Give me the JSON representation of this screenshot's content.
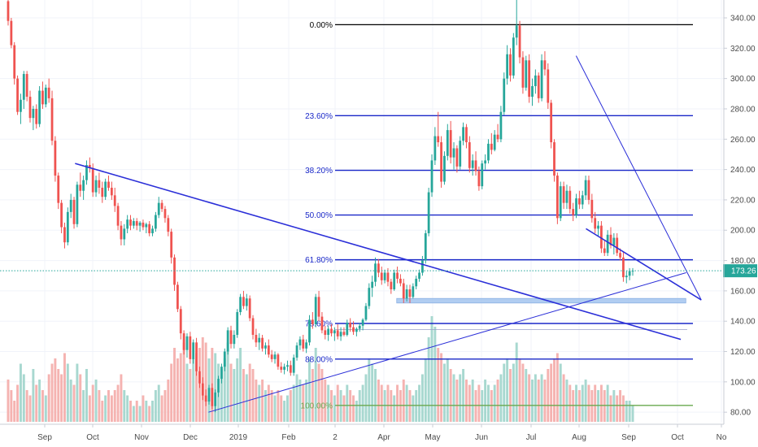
{
  "chart_data": {
    "type": "candlestick",
    "last_price": "173.26",
    "last_price_value": 173.26,
    "y_axis": {
      "ylim": [
        62,
        352
      ],
      "ticks": [
        "340.00",
        "320.00",
        "300.00",
        "280.00",
        "260.00",
        "240.00",
        "220.00",
        "200.00",
        "180.00",
        "160.00",
        "140.00",
        "120.00",
        "100.00",
        "80.00"
      ],
      "tick_values": [
        340,
        320,
        300,
        280,
        260,
        240,
        220,
        200,
        180,
        160,
        140,
        120,
        100,
        80
      ]
    },
    "x_axis": {
      "tick_labels": [
        "Sep",
        "Oct",
        "Nov",
        "Dec",
        "2019",
        "Feb",
        "2",
        "Apr",
        "May",
        "Jun",
        "Jul",
        "Aug",
        "Sep",
        "Oct",
        "No"
      ]
    },
    "fibonacci": [
      {
        "label": "0.00%",
        "value": 335.5,
        "color": "#000000"
      },
      {
        "label": "23.60%",
        "value": 275.5,
        "color": "#1a28c8"
      },
      {
        "label": "38.20%",
        "value": 239.5,
        "color": "#1a28c8"
      },
      {
        "label": "50.00%",
        "value": 210.0,
        "color": "#1a28c8"
      },
      {
        "label": "61.80%",
        "value": 180.5,
        "color": "#1a28c8"
      },
      {
        "label": "78.60%",
        "value": 138.5,
        "color": "#1a28c8"
      },
      {
        "label": "88.00%",
        "value": 115.0,
        "color": "#1a28c8"
      },
      {
        "label": "100.00%",
        "value": 84.5,
        "color": "#6aa84f"
      }
    ],
    "colors": {
      "up": "#26a69a",
      "down": "#ef5350",
      "up_volume": "#a8d8d0",
      "down_volume": "#f5b3b1",
      "trendline": "#2b2fd8",
      "support_zone": "#a9c8f0",
      "price_line": "#26a69a",
      "grid": "#f0f3fa"
    },
    "trendlines": [
      {
        "name": "descending-resistance",
        "from": [
          0.113,
          244
        ],
        "to": [
          0.925,
          128
        ]
      },
      {
        "name": "rising-support",
        "from": [
          0.289,
          80
        ],
        "to": [
          0.932,
          172
        ]
      },
      {
        "name": "wedge-upper",
        "from": [
          0.774,
          315
        ],
        "to": [
          0.952,
          154
        ]
      },
      {
        "name": "wedge-lower",
        "from": [
          0.787,
          201
        ],
        "to": [
          0.952,
          154
        ]
      }
    ],
    "support_zone": {
      "from": 0.577,
      "to": 0.952,
      "low": 152,
      "high": 155
    },
    "candles": [
      [
        351,
        352,
        335,
        338
      ],
      [
        338,
        340,
        320,
        322
      ],
      [
        322,
        324,
        296,
        300
      ],
      [
        300,
        302,
        276,
        278
      ],
      [
        278,
        290,
        270,
        286
      ],
      [
        286,
        305,
        280,
        303
      ],
      [
        303,
        305,
        285,
        288
      ],
      [
        288,
        292,
        271,
        274
      ],
      [
        274,
        282,
        266,
        280
      ],
      [
        280,
        283,
        267,
        270
      ],
      [
        270,
        295,
        268,
        292
      ],
      [
        292,
        298,
        280,
        283
      ],
      [
        283,
        296,
        281,
        294
      ],
      [
        294,
        300,
        284,
        287
      ],
      [
        287,
        292,
        256,
        259
      ],
      [
        259,
        262,
        232,
        236
      ],
      [
        236,
        238,
        214,
        218
      ],
      [
        218,
        220,
        198,
        202
      ],
      [
        202,
        205,
        188,
        192
      ],
      [
        192,
        215,
        190,
        212
      ],
      [
        212,
        224,
        208,
        220
      ],
      [
        220,
        222,
        201,
        204
      ],
      [
        204,
        232,
        202,
        230
      ],
      [
        230,
        238,
        222,
        226
      ],
      [
        226,
        236,
        220,
        233
      ],
      [
        233,
        246,
        230,
        243
      ],
      [
        243,
        248,
        238,
        241
      ],
      [
        241,
        244,
        222,
        225
      ],
      [
        225,
        236,
        222,
        233
      ],
      [
        233,
        238,
        224,
        228
      ],
      [
        228,
        232,
        218,
        222
      ],
      [
        222,
        234,
        220,
        232
      ],
      [
        232,
        236,
        226,
        228
      ],
      [
        228,
        232,
        220,
        223
      ],
      [
        223,
        228,
        212,
        216
      ],
      [
        216,
        218,
        200,
        203
      ],
      [
        203,
        206,
        190,
        194
      ],
      [
        194,
        204,
        190,
        201
      ],
      [
        201,
        210,
        198,
        207
      ],
      [
        207,
        210,
        200,
        203
      ],
      [
        203,
        208,
        201,
        206
      ],
      [
        206,
        208,
        200,
        203
      ],
      [
        203,
        206,
        199,
        205
      ],
      [
        205,
        207,
        200,
        202
      ],
      [
        202,
        205,
        198,
        204
      ],
      [
        204,
        206,
        196,
        198
      ],
      [
        198,
        203,
        196,
        201
      ],
      [
        201,
        212,
        199,
        210
      ],
      [
        210,
        222,
        208,
        218
      ],
      [
        218,
        220,
        212,
        214
      ],
      [
        214,
        216,
        205,
        208
      ],
      [
        208,
        210,
        196,
        199
      ],
      [
        199,
        201,
        178,
        182
      ],
      [
        182,
        184,
        160,
        164
      ],
      [
        164,
        166,
        146,
        148
      ],
      [
        148,
        150,
        128,
        132
      ],
      [
        132,
        134,
        118,
        121
      ],
      [
        121,
        132,
        116,
        130
      ],
      [
        130,
        133,
        112,
        115
      ],
      [
        115,
        128,
        112,
        126
      ],
      [
        126,
        129,
        104,
        107
      ],
      [
        107,
        110,
        96,
        99
      ],
      [
        99,
        103,
        88,
        91
      ],
      [
        91,
        95,
        84,
        87
      ],
      [
        87,
        98,
        85,
        96
      ],
      [
        96,
        99,
        82,
        84
      ],
      [
        84,
        95,
        80,
        93
      ],
      [
        93,
        104,
        90,
        102
      ],
      [
        102,
        112,
        99,
        110
      ],
      [
        110,
        122,
        107,
        120
      ],
      [
        120,
        136,
        118,
        134
      ],
      [
        134,
        137,
        122,
        125
      ],
      [
        125,
        134,
        122,
        131
      ],
      [
        131,
        148,
        129,
        146
      ],
      [
        146,
        158,
        144,
        156
      ],
      [
        156,
        160,
        148,
        150
      ],
      [
        150,
        158,
        147,
        155
      ],
      [
        155,
        157,
        140,
        142
      ],
      [
        142,
        144,
        128,
        131
      ],
      [
        131,
        135,
        123,
        126
      ],
      [
        126,
        132,
        121,
        129
      ],
      [
        129,
        131,
        120,
        122
      ],
      [
        122,
        126,
        118,
        124
      ],
      [
        124,
        128,
        116,
        118
      ],
      [
        118,
        121,
        113,
        115
      ],
      [
        115,
        120,
        112,
        118
      ],
      [
        118,
        119,
        108,
        110
      ],
      [
        110,
        113,
        106,
        108
      ],
      [
        108,
        112,
        105,
        110
      ],
      [
        110,
        114,
        107,
        111
      ],
      [
        111,
        114,
        104,
        106
      ],
      [
        106,
        118,
        104,
        116
      ],
      [
        116,
        126,
        114,
        124
      ],
      [
        124,
        130,
        121,
        128
      ],
      [
        128,
        131,
        120,
        122
      ],
      [
        122,
        128,
        119,
        126
      ],
      [
        126,
        144,
        124,
        141
      ],
      [
        141,
        146,
        135,
        138
      ],
      [
        138,
        158,
        136,
        156
      ],
      [
        156,
        160,
        140,
        143
      ],
      [
        143,
        146,
        132,
        134
      ],
      [
        134,
        137,
        128,
        131
      ],
      [
        131,
        137,
        127,
        135
      ],
      [
        135,
        138,
        130,
        132
      ],
      [
        132,
        136,
        127,
        134
      ],
      [
        134,
        138,
        128,
        130
      ],
      [
        130,
        136,
        127,
        133
      ],
      [
        133,
        136,
        130,
        131
      ],
      [
        131,
        141,
        130,
        139
      ],
      [
        139,
        142,
        133,
        136
      ],
      [
        136,
        140,
        131,
        133
      ],
      [
        133,
        136,
        130,
        135
      ],
      [
        135,
        139,
        133,
        137
      ],
      [
        137,
        142,
        134,
        141
      ],
      [
        141,
        152,
        140,
        150
      ],
      [
        150,
        165,
        148,
        162
      ],
      [
        162,
        170,
        156,
        166
      ],
      [
        166,
        182,
        163,
        178
      ],
      [
        178,
        181,
        169,
        172
      ],
      [
        172,
        176,
        164,
        167
      ],
      [
        167,
        174,
        165,
        172
      ],
      [
        172,
        175,
        163,
        166
      ],
      [
        166,
        168,
        158,
        161
      ],
      [
        161,
        174,
        160,
        172
      ],
      [
        172,
        176,
        165,
        168
      ],
      [
        168,
        171,
        163,
        165
      ],
      [
        165,
        168,
        152,
        155
      ],
      [
        155,
        164,
        153,
        161
      ],
      [
        161,
        164,
        152,
        156
      ],
      [
        156,
        165,
        155,
        163
      ],
      [
        163,
        170,
        161,
        168
      ],
      [
        168,
        174,
        166,
        172
      ],
      [
        172,
        183,
        170,
        180
      ],
      [
        180,
        200,
        178,
        198
      ],
      [
        198,
        228,
        196,
        225
      ],
      [
        225,
        250,
        222,
        246
      ],
      [
        246,
        268,
        243,
        262
      ],
      [
        262,
        278,
        255,
        258
      ],
      [
        258,
        262,
        228,
        232
      ],
      [
        232,
        252,
        230,
        249
      ],
      [
        249,
        270,
        246,
        266
      ],
      [
        266,
        272,
        244,
        248
      ],
      [
        248,
        258,
        240,
        254
      ],
      [
        254,
        256,
        238,
        242
      ],
      [
        242,
        262,
        240,
        259
      ],
      [
        259,
        271,
        256,
        268
      ],
      [
        268,
        270,
        254,
        258
      ],
      [
        258,
        262,
        238,
        241
      ],
      [
        241,
        250,
        236,
        246
      ],
      [
        246,
        252,
        236,
        239
      ],
      [
        239,
        242,
        226,
        229
      ],
      [
        229,
        246,
        227,
        244
      ],
      [
        244,
        250,
        240,
        246
      ],
      [
        246,
        260,
        244,
        257
      ],
      [
        257,
        264,
        250,
        253
      ],
      [
        253,
        266,
        252,
        263
      ],
      [
        263,
        270,
        258,
        260
      ],
      [
        260,
        282,
        258,
        278
      ],
      [
        278,
        304,
        276,
        300
      ],
      [
        300,
        322,
        296,
        316
      ],
      [
        316,
        320,
        298,
        302
      ],
      [
        302,
        330,
        300,
        327
      ],
      [
        327,
        352,
        322,
        335
      ],
      [
        335,
        338,
        310,
        314
      ],
      [
        314,
        318,
        290,
        294
      ],
      [
        294,
        315,
        292,
        312
      ],
      [
        312,
        316,
        284,
        288
      ],
      [
        288,
        300,
        282,
        295
      ],
      [
        295,
        306,
        290,
        302
      ],
      [
        302,
        304,
        284,
        287
      ],
      [
        287,
        316,
        285,
        312
      ],
      [
        312,
        318,
        302,
        306
      ],
      [
        306,
        310,
        280,
        284
      ],
      [
        284,
        286,
        254,
        258
      ],
      [
        258,
        260,
        232,
        236
      ],
      [
        236,
        238,
        204,
        208
      ],
      [
        208,
        232,
        206,
        229
      ],
      [
        229,
        232,
        214,
        218
      ],
      [
        218,
        230,
        214,
        226
      ],
      [
        226,
        229,
        211,
        214
      ],
      [
        214,
        218,
        206,
        210
      ],
      [
        210,
        224,
        208,
        221
      ],
      [
        221,
        226,
        214,
        217
      ],
      [
        217,
        226,
        214,
        223
      ],
      [
        223,
        236,
        220,
        233
      ],
      [
        233,
        236,
        217,
        220
      ],
      [
        220,
        224,
        205,
        208
      ],
      [
        208,
        212,
        198,
        201
      ],
      [
        201,
        206,
        196,
        203
      ],
      [
        203,
        206,
        185,
        188
      ],
      [
        188,
        193,
        183,
        185
      ],
      [
        185,
        200,
        183,
        197
      ],
      [
        197,
        202,
        188,
        190
      ],
      [
        190,
        198,
        184,
        195
      ],
      [
        195,
        198,
        183,
        185
      ],
      [
        185,
        188,
        180,
        182
      ],
      [
        182,
        186,
        166,
        169
      ],
      [
        169,
        173,
        165,
        170
      ],
      [
        170,
        175,
        167,
        173
      ],
      [
        173,
        175,
        170,
        173.26
      ]
    ],
    "volumes": [
      0.4,
      0.3,
      0.2,
      0.35,
      0.55,
      0.45,
      0.3,
      0.25,
      0.5,
      0.35,
      0.4,
      0.3,
      0.25,
      0.45,
      0.55,
      0.6,
      0.5,
      0.45,
      0.65,
      0.55,
      0.4,
      0.35,
      0.55,
      0.45,
      0.3,
      0.5,
      0.25,
      0.35,
      0.4,
      0.3,
      0.2,
      0.25,
      0.3,
      0.25,
      0.3,
      0.35,
      0.45,
      0.3,
      0.25,
      0.2,
      0.15,
      0.2,
      0.15,
      0.25,
      0.2,
      0.15,
      0.2,
      0.3,
      0.35,
      0.25,
      0.3,
      0.4,
      0.55,
      0.7,
      0.6,
      0.65,
      0.75,
      0.55,
      0.5,
      0.6,
      0.65,
      0.7,
      0.8,
      0.75,
      0.6,
      0.7,
      0.65,
      0.55,
      0.5,
      0.6,
      0.75,
      0.55,
      0.5,
      0.6,
      0.7,
      0.5,
      0.45,
      0.55,
      0.5,
      0.4,
      0.35,
      0.4,
      0.3,
      0.35,
      0.3,
      0.25,
      0.3,
      0.25,
      0.2,
      0.25,
      0.3,
      0.35,
      0.45,
      0.4,
      0.35,
      0.4,
      0.6,
      0.5,
      0.7,
      0.55,
      0.5,
      0.4,
      0.35,
      0.3,
      0.25,
      0.35,
      0.3,
      0.25,
      0.35,
      0.3,
      0.25,
      0.2,
      0.3,
      0.35,
      0.45,
      0.6,
      0.55,
      0.5,
      0.4,
      0.35,
      0.3,
      0.35,
      0.3,
      0.25,
      0.35,
      0.3,
      0.4,
      0.35,
      0.3,
      0.25,
      0.3,
      0.35,
      0.45,
      0.6,
      0.8,
      1.0,
      0.9,
      0.7,
      0.65,
      0.55,
      0.6,
      0.5,
      0.45,
      0.4,
      0.45,
      0.5,
      0.4,
      0.35,
      0.4,
      0.3,
      0.35,
      0.3,
      0.4,
      0.35,
      0.3,
      0.35,
      0.4,
      0.45,
      0.55,
      0.6,
      0.5,
      0.55,
      0.75,
      0.6,
      0.55,
      0.5,
      0.45,
      0.4,
      0.45,
      0.4,
      0.45,
      0.4,
      0.5,
      0.55,
      0.6,
      0.65,
      0.55,
      0.45,
      0.4,
      0.35,
      0.3,
      0.35,
      0.3,
      0.35,
      0.4,
      0.35,
      0.3,
      0.35,
      0.3,
      0.35,
      0.3,
      0.35,
      0.25,
      0.3,
      0.25,
      0.3,
      0.25,
      0.2,
      0.2,
      0.15
    ]
  }
}
